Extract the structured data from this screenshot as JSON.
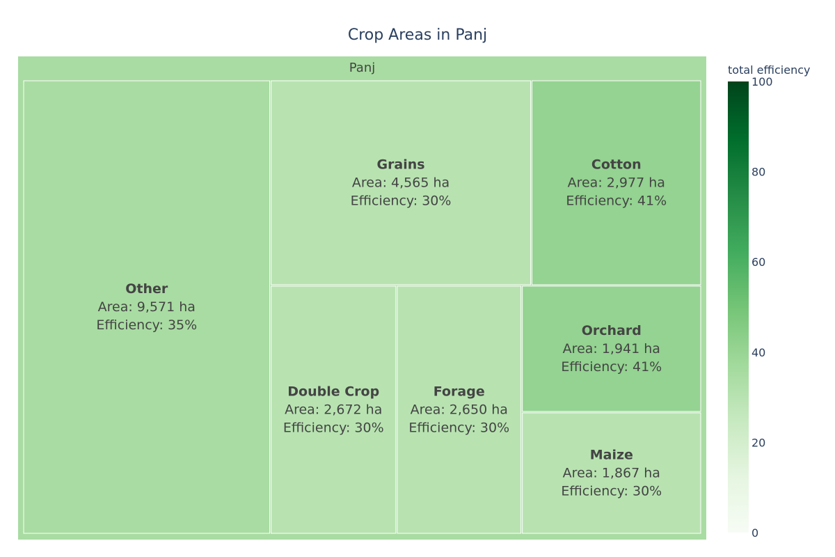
{
  "chart_data": {
    "type": "treemap",
    "title": "Crop Areas in Panj",
    "root": {
      "name": "Panj",
      "efficiency": 35
    },
    "tiles": [
      {
        "name": "Other",
        "area": 9571,
        "area_text": "Area: 9,571 ha",
        "efficiency": 35,
        "efficiency_text": "Efficiency: 35%"
      },
      {
        "name": "Grains",
        "area": 4565,
        "area_text": "Area: 4,565 ha",
        "efficiency": 30,
        "efficiency_text": "Efficiency: 30%"
      },
      {
        "name": "Cotton",
        "area": 2977,
        "area_text": "Area: 2,977 ha",
        "efficiency": 41,
        "efficiency_text": "Efficiency: 41%"
      },
      {
        "name": "Double Crop",
        "area": 2672,
        "area_text": "Area: 2,672 ha",
        "efficiency": 30,
        "efficiency_text": "Efficiency: 30%"
      },
      {
        "name": "Forage",
        "area": 2650,
        "area_text": "Area: 2,650 ha",
        "efficiency": 30,
        "efficiency_text": "Efficiency: 30%"
      },
      {
        "name": "Orchard",
        "area": 1941,
        "area_text": "Area: 1,941 ha",
        "efficiency": 41,
        "efficiency_text": "Efficiency: 41%"
      },
      {
        "name": "Maize",
        "area": 1867,
        "area_text": "Area: 1,867 ha",
        "efficiency": 30,
        "efficiency_text": "Efficiency: 30%"
      }
    ],
    "colorbar": {
      "title": "total efficiency",
      "range": [
        0,
        100
      ],
      "ticks": [
        "0",
        "20",
        "40",
        "60",
        "80",
        "100"
      ],
      "tick_values": [
        0,
        20,
        40,
        60,
        80,
        100
      ],
      "colorscale": "Greens",
      "stops": [
        "#f7fcf5",
        "#e5f5e0",
        "#c7e9c0",
        "#a1d99b",
        "#74c476",
        "#41ab5d",
        "#238b45",
        "#006d2c",
        "#00441b"
      ]
    }
  }
}
